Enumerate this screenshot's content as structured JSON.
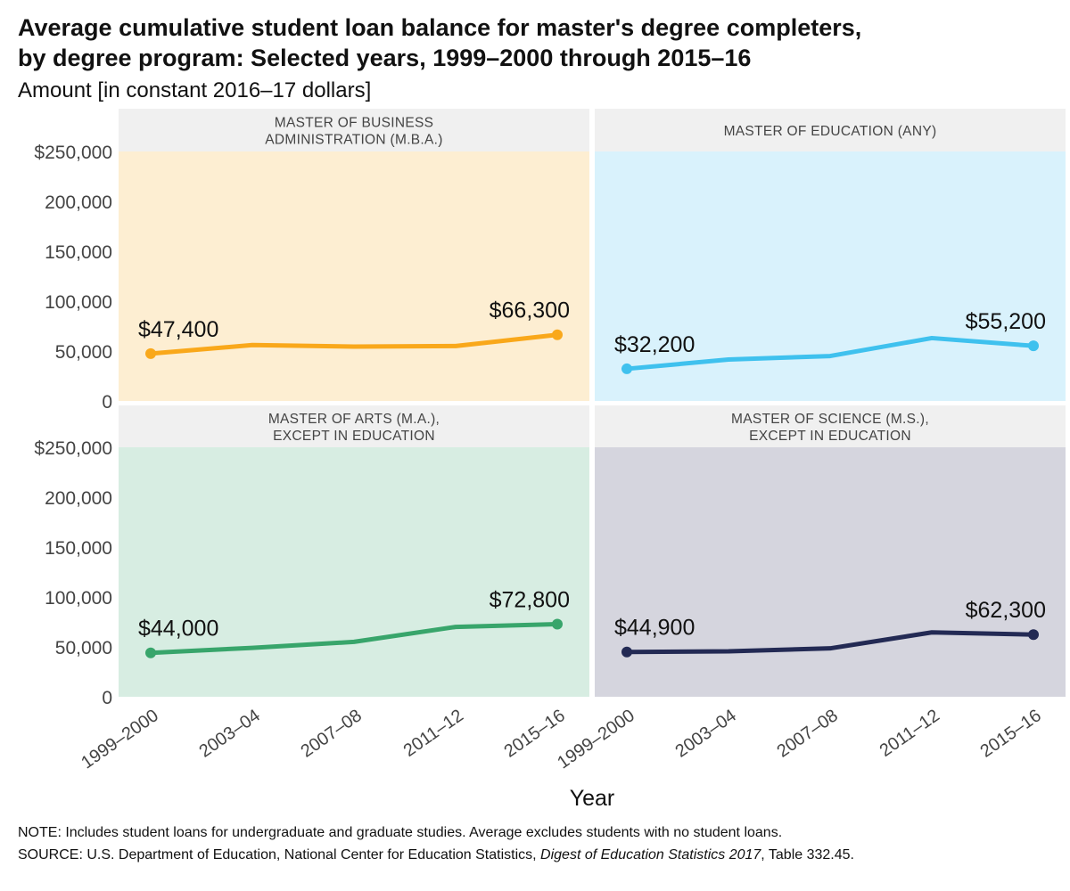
{
  "header": {
    "title_line1": "Average cumulative student loan balance for master's degree completers,",
    "title_line2": "by degree program: Selected years, 1999–2000 through 2015–16",
    "subtitle": "Amount [in constant 2016–17 dollars]"
  },
  "footer": {
    "note": "NOTE: Includes student loans for undergraduate and graduate studies. Average excludes students with no student loans.",
    "source_prefix": "SOURCE: U.S. Department of Education, National Center for Education Statistics, ",
    "source_pub": "Digest of Education Statistics 2017",
    "source_suffix": ", Table 332.45."
  },
  "chart_data": {
    "type": "line",
    "xlabel": "Year",
    "ylim": [
      0,
      250000
    ],
    "y_ticks": [
      0,
      50000,
      100000,
      150000,
      200000,
      250000
    ],
    "y_tick_labels": [
      "0",
      "50,000",
      "100,000",
      "150,000",
      "200,000",
      "$250,000"
    ],
    "categories": [
      "1999–2000",
      "2003–04",
      "2007–08",
      "2011–12",
      "2015–16"
    ],
    "grid": false,
    "panels": [
      {
        "facet_title": [
          "MASTER OF BUSINESS",
          "ADMINISTRATION (M.B.A.)"
        ],
        "values": [
          47400,
          56000,
          54500,
          55000,
          66300
        ],
        "data_labels": [
          "$47,400",
          "$66,300"
        ],
        "color": "#F9A81B",
        "background": "#FDEED2"
      },
      {
        "facet_title": [
          "MASTER OF EDUCATION (ANY)"
        ],
        "values": [
          32200,
          41500,
          45000,
          63000,
          55200
        ],
        "data_labels": [
          "$32,200",
          "$55,200"
        ],
        "color": "#3FC1EE",
        "background": "#D9F2FC"
      },
      {
        "facet_title": [
          "MASTER OF ARTS (M.A.),",
          "EXCEPT IN EDUCATION"
        ],
        "values": [
          44000,
          49000,
          55000,
          70000,
          72800
        ],
        "data_labels": [
          "$44,000",
          "$72,800"
        ],
        "color": "#38A56B",
        "background": "#D7EDE2"
      },
      {
        "facet_title": [
          "MASTER OF SCIENCE (M.S.),",
          "EXCEPT IN EDUCATION"
        ],
        "values": [
          44900,
          45500,
          48500,
          64500,
          62300
        ],
        "data_labels": [
          "$44,900",
          "$62,300"
        ],
        "color": "#232A54",
        "background": "#D5D5DE"
      }
    ]
  }
}
